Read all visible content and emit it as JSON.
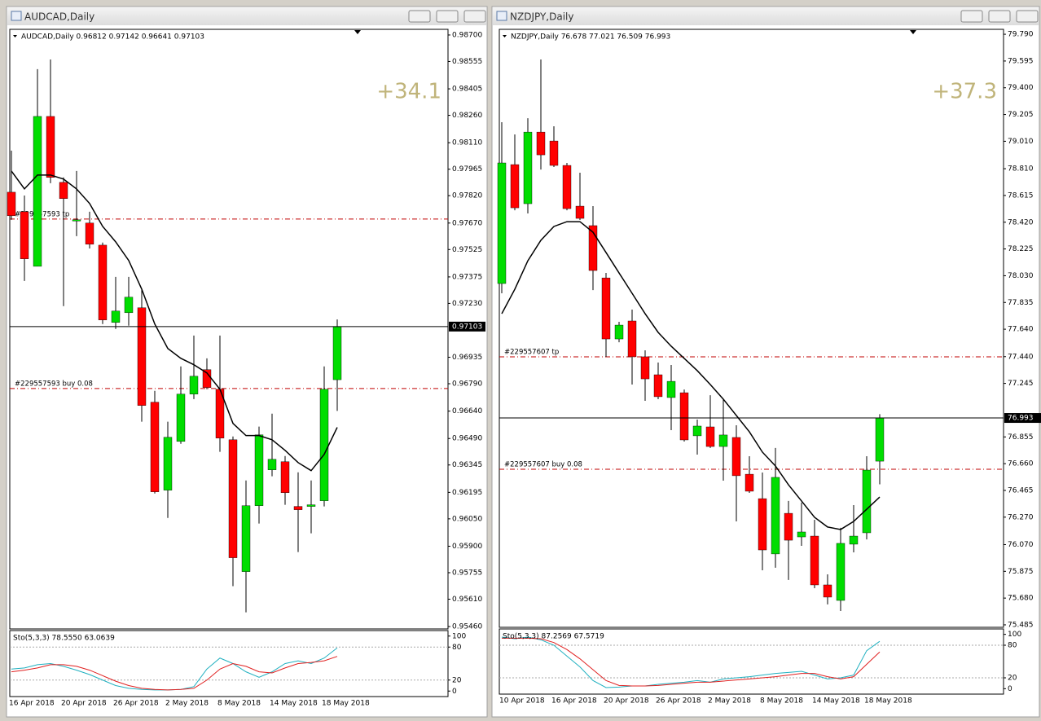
{
  "chart_data": [
    {
      "type": "candlestick",
      "title": "AUDCAD,Daily",
      "info": "AUDCAD,Daily  0.96812 0.97142 0.96641 0.97103",
      "profit": "+34.1",
      "categories": [
        "16 Apr 2018",
        null,
        null,
        null,
        "20 Apr 2018",
        null,
        null,
        null,
        "26 Apr 2018",
        null,
        null,
        null,
        "2 May 2018",
        null,
        null,
        null,
        "8 May 2018",
        null,
        null,
        null,
        "14 May 2018",
        null,
        null,
        null,
        "18 May 2018",
        null
      ],
      "open": [
        0.97839,
        0.97732,
        0.97433,
        0.98254,
        0.97893,
        0.97688,
        0.9767,
        0.97549,
        0.97126,
        0.97179,
        0.97206,
        0.96689,
        0.96207,
        0.96474,
        0.96733,
        0.96867,
        0.9676,
        0.96483,
        0.95761,
        0.96122,
        0.96318,
        0.96363,
        0.96118,
        0.96118,
        0.96149,
        0.96812
      ],
      "high": [
        0.98067,
        0.97821,
        0.98513,
        0.98566,
        0.9792,
        0.97955,
        0.97732,
        0.97563,
        0.97375,
        0.97375,
        0.97308,
        0.96751,
        0.96582,
        0.96885,
        0.97054,
        0.96929,
        0.97054,
        0.96501,
        0.9626,
        0.96555,
        0.96626,
        0.96394,
        0.96305,
        0.9626,
        0.96885,
        0.97142
      ],
      "low": [
        0.97688,
        0.97353,
        0.97433,
        0.97888,
        0.97215,
        0.97598,
        0.97531,
        0.97117,
        0.9709,
        0.97108,
        0.96582,
        0.96189,
        0.96055,
        0.96461,
        0.96706,
        0.9676,
        0.96417,
        0.95681,
        0.95538,
        0.96024,
        0.96283,
        0.96127,
        0.95868,
        0.95971,
        0.96118,
        0.96641
      ],
      "close": [
        0.9771,
        0.97474,
        0.98254,
        0.9792,
        0.97804,
        0.97688,
        0.97554,
        0.97139,
        0.97188,
        0.97264,
        0.96671,
        0.96198,
        0.96497,
        0.96733,
        0.96831,
        0.96769,
        0.96492,
        0.95837,
        0.96122,
        0.9651,
        0.96376,
        0.96193,
        0.961,
        0.96127,
        0.9676,
        0.97103
      ],
      "up_color": "#00dd00",
      "down_color": "#ff0000",
      "ma": {
        "color": "#000000",
        "values": [
          0.97955,
          0.97857,
          0.97933,
          0.97933,
          0.97911,
          0.97857,
          0.97777,
          0.97652,
          0.97567,
          0.97465,
          0.97308,
          0.97117,
          0.96983,
          0.96929,
          0.96894,
          0.96849,
          0.9676,
          0.96573,
          0.96506,
          0.96506,
          0.96483,
          0.96425,
          0.96358,
          0.96314,
          0.96403,
          0.96551
        ]
      },
      "ylim": [
        0.95447,
        0.98731
      ],
      "yticks": [
        {
          "value": 0.987,
          "label": "0.98700"
        },
        {
          "value": 0.98555,
          "label": "0.98555"
        },
        {
          "value": 0.98405,
          "label": "0.98405"
        },
        {
          "value": 0.9826,
          "label": "0.98260"
        },
        {
          "value": 0.9811,
          "label": "0.98110"
        },
        {
          "value": 0.97965,
          "label": "0.97965"
        },
        {
          "value": 0.9782,
          "label": "0.97820"
        },
        {
          "value": 0.9767,
          "label": "0.97670"
        },
        {
          "value": 0.97525,
          "label": "0.97525"
        },
        {
          "value": 0.97375,
          "label": "0.97375"
        },
        {
          "value": 0.9723,
          "label": "0.97230"
        },
        {
          "value": 0.96935,
          "label": "0.96935"
        },
        {
          "value": 0.9679,
          "label": "0.96790"
        },
        {
          "value": 0.9664,
          "label": "0.96640"
        },
        {
          "value": 0.9649,
          "label": "0.96490"
        },
        {
          "value": 0.96345,
          "label": "0.96345"
        },
        {
          "value": 0.96195,
          "label": "0.96195"
        },
        {
          "value": 0.9605,
          "label": "0.96050"
        },
        {
          "value": 0.959,
          "label": "0.95900"
        },
        {
          "value": 0.95755,
          "label": "0.95755"
        },
        {
          "value": 0.9561,
          "label": "0.95610"
        },
        {
          "value": 0.9546,
          "label": "0.95460"
        }
      ],
      "orders": [
        {
          "label": "#229557593 tp",
          "value": 0.97692
        },
        {
          "label": "#229557593 buy 0.08",
          "value": 0.96764
        }
      ],
      "stochastic": {
        "label": "Sto(5,3,3) 78.5550 63.0639",
        "ylim": [
          -10,
          110
        ],
        "yticks": [
          100,
          80,
          20,
          0
        ],
        "series": [
          {
            "color": "#20b0c0",
            "values": [
              40,
              42,
              48,
              50,
              45,
              38,
              30,
              20,
              10,
              5,
              3,
              2,
              2,
              3,
              8,
              40,
              60,
              50,
              35,
              25,
              35,
              50,
              55,
              50,
              60,
              78.555
            ]
          },
          {
            "color": "#e02020",
            "values": [
              35,
              38,
              42,
              48,
              48,
              45,
              38,
              28,
              18,
              10,
              5,
              3,
              2,
              3,
              5,
              20,
              40,
              50,
              45,
              35,
              33,
              42,
              50,
              52,
              55,
              63.0639
            ]
          }
        ]
      }
    },
    {
      "type": "candlestick",
      "title": "NZDJPY,Daily",
      "info": "NZDJPY,Daily  76.678 77.021 76.509 76.993",
      "profit": "+37.3",
      "categories": [
        "10 Apr 2018",
        null,
        null,
        null,
        "16 Apr 2018",
        null,
        null,
        null,
        "20 Apr 2018",
        null,
        null,
        null,
        "26 Apr 2018",
        null,
        null,
        null,
        "2 May 2018",
        null,
        null,
        null,
        "8 May 2018",
        null,
        null,
        null,
        "14 May 2018",
        null,
        null,
        null,
        "18 May 2018",
        null
      ],
      "open": [
        77.973,
        78.84,
        78.555,
        79.077,
        79.012,
        78.834,
        78.537,
        78.395,
        78.014,
        77.569,
        77.7,
        77.439,
        77.308,
        77.142,
        77.177,
        76.863,
        76.928,
        76.785,
        76.851,
        76.583,
        76.405,
        76.002,
        76.298,
        76.126,
        76.132,
        75.776,
        75.663,
        76.073,
        76.156,
        76.678
      ],
      "high": [
        79.149,
        79.06,
        79.178,
        79.606,
        79.119,
        78.852,
        78.781,
        78.537,
        78.05,
        77.694,
        77.783,
        77.486,
        77.397,
        77.379,
        77.2,
        76.981,
        77.159,
        77.13,
        76.94,
        76.714,
        76.595,
        76.774,
        76.388,
        76.376,
        76.251,
        75.853,
        76.192,
        76.358,
        76.714,
        77.021
      ],
      "low": [
        77.902,
        78.507,
        78.484,
        78.804,
        78.822,
        78.507,
        78.436,
        77.925,
        77.439,
        77.545,
        77.237,
        77.118,
        77.13,
        76.904,
        76.821,
        76.726,
        76.774,
        76.536,
        76.239,
        76.447,
        75.883,
        75.901,
        75.812,
        76.061,
        75.752,
        75.634,
        75.586,
        76.013,
        76.108,
        76.509
      ],
      "close": [
        78.852,
        78.525,
        79.077,
        78.911,
        78.834,
        78.519,
        78.448,
        78.068,
        77.569,
        77.67,
        77.439,
        77.278,
        77.148,
        77.26,
        76.833,
        76.934,
        76.785,
        76.869,
        76.572,
        76.459,
        76.031,
        76.56,
        76.102,
        76.162,
        75.776,
        75.687,
        76.079,
        76.132,
        76.613,
        76.993
      ],
      "up_color": "#00dd00",
      "down_color": "#ff0000",
      "ma": {
        "color": "#000000",
        "values": [
          77.753,
          77.931,
          78.139,
          78.288,
          78.389,
          78.424,
          78.424,
          78.347,
          78.199,
          78.05,
          77.902,
          77.753,
          77.617,
          77.516,
          77.427,
          77.338,
          77.237,
          77.13,
          77.011,
          76.892,
          76.744,
          76.643,
          76.506,
          76.388,
          76.269,
          76.198,
          76.18,
          76.239,
          76.328,
          76.417
        ]
      },
      "ylim": [
        75.467,
        79.826
      ],
      "yticks": [
        {
          "value": 79.79,
          "label": "79.790"
        },
        {
          "value": 79.595,
          "label": "79.595"
        },
        {
          "value": 79.4,
          "label": "79.400"
        },
        {
          "value": 79.205,
          "label": "79.205"
        },
        {
          "value": 79.01,
          "label": "79.010"
        },
        {
          "value": 78.81,
          "label": "78.810"
        },
        {
          "value": 78.615,
          "label": "78.615"
        },
        {
          "value": 78.42,
          "label": "78.420"
        },
        {
          "value": 78.225,
          "label": "78.225"
        },
        {
          "value": 78.03,
          "label": "78.030"
        },
        {
          "value": 77.835,
          "label": "77.835"
        },
        {
          "value": 77.64,
          "label": "77.640"
        },
        {
          "value": 77.44,
          "label": "77.440"
        },
        {
          "value": 77.245,
          "label": "77.245"
        },
        {
          "value": 76.855,
          "label": "76.855"
        },
        {
          "value": 76.66,
          "label": "76.660"
        },
        {
          "value": 76.465,
          "label": "76.465"
        },
        {
          "value": 76.27,
          "label": "76.270"
        },
        {
          "value": 76.07,
          "label": "76.070"
        },
        {
          "value": 75.875,
          "label": "75.875"
        },
        {
          "value": 75.68,
          "label": "75.680"
        },
        {
          "value": 75.485,
          "label": "75.485"
        }
      ],
      "orders": [
        {
          "label": "#229557607 tp",
          "value": 77.439
        },
        {
          "label": "#229557607 buy 0.08",
          "value": 76.619
        }
      ],
      "stochastic": {
        "label": "Sto(5,3,3) 87.2569 67.5719",
        "ylim": [
          -10,
          110
        ],
        "yticks": [
          100,
          80,
          20,
          0
        ],
        "series": [
          {
            "color": "#20b0c0",
            "values": [
              95,
              92,
              95,
              90,
              80,
              60,
              40,
              15,
              2,
              3,
              5,
              5,
              8,
              10,
              12,
              15,
              12,
              18,
              20,
              22,
              25,
              28,
              30,
              32,
              25,
              18,
              20,
              25,
              70,
              87.2569
            ]
          },
          {
            "color": "#e02020",
            "values": [
              93,
              93,
              93,
              92,
              85,
              72,
              55,
              35,
              15,
              6,
              5,
              5,
              6,
              8,
              10,
              12,
              12,
              14,
              16,
              18,
              20,
              22,
              25,
              28,
              28,
              22,
              18,
              22,
              45,
              67.5719
            ]
          }
        ]
      }
    }
  ]
}
